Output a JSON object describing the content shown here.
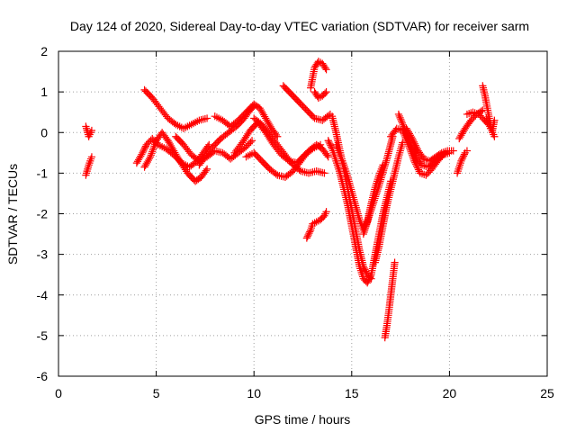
{
  "chart_data": {
    "type": "scatter",
    "title": "Day 124 of 2020, Sidereal Day-to-day VTEC variation (SDTVAR) for receiver sarm",
    "xlabel": "GPS time / hours",
    "ylabel": "SDTVAR / TECUs",
    "xlim": [
      0,
      25
    ],
    "ylim": [
      -6,
      2
    ],
    "xticks": [
      "0",
      "5",
      "10",
      "15",
      "20",
      "25"
    ],
    "yticks": [
      "-6",
      "-5",
      "-4",
      "-3",
      "-2",
      "-1",
      "0",
      "1",
      "2"
    ],
    "grid": true,
    "marker": "plus",
    "color": "#ff0000",
    "series": [
      {
        "x": [
          1.4,
          1.55,
          1.7
        ],
        "y": [
          0.15,
          -0.1,
          0.05
        ]
      },
      {
        "x": [
          1.4,
          1.55,
          1.7
        ],
        "y": [
          -1.05,
          -0.8,
          -0.6
        ]
      },
      {
        "x": [
          4.0,
          4.3,
          4.5,
          4.8,
          5.1,
          5.5,
          5.9,
          6.3,
          6.7,
          7.1,
          7.4,
          7.7
        ],
        "y": [
          -0.75,
          -0.5,
          -0.3,
          -0.15,
          -0.3,
          -0.4,
          -0.55,
          -0.75,
          -0.85,
          -0.7,
          -0.5,
          -0.3
        ]
      },
      {
        "x": [
          4.4,
          4.7,
          5.0,
          5.3,
          5.6,
          5.9,
          6.2,
          6.6,
          7.0,
          7.3,
          7.6
        ],
        "y": [
          -0.85,
          -0.6,
          -0.2,
          0.0,
          -0.2,
          -0.45,
          -0.7,
          -1.0,
          -1.2,
          -1.1,
          -0.9
        ]
      },
      {
        "x": [
          4.4,
          4.8,
          5.2,
          5.6,
          6.0,
          6.4,
          6.8,
          7.2,
          7.6
        ],
        "y": [
          1.05,
          0.85,
          0.6,
          0.35,
          0.2,
          0.1,
          0.2,
          0.3,
          0.35
        ]
      },
      {
        "x": [
          6.0,
          6.4,
          6.8,
          7.2,
          7.6,
          8.0,
          8.4,
          8.8,
          9.2,
          9.6,
          9.9
        ],
        "y": [
          -0.1,
          -0.3,
          -0.55,
          -0.7,
          -0.6,
          -0.45,
          -0.5,
          -0.65,
          -0.5,
          -0.35,
          -0.2
        ]
      },
      {
        "x": [
          7.2,
          7.5,
          7.9,
          8.3,
          8.7,
          9.1,
          9.5,
          9.8,
          10.0
        ],
        "y": [
          -0.8,
          -0.6,
          -0.35,
          -0.15,
          0.0,
          0.15,
          0.35,
          0.55,
          0.65
        ]
      },
      {
        "x": [
          8.0,
          8.4,
          8.8,
          9.2,
          9.6,
          10.0,
          10.3,
          10.6,
          10.9,
          11.2
        ],
        "y": [
          0.4,
          0.3,
          0.15,
          0.3,
          0.5,
          0.7,
          0.6,
          0.35,
          0.1,
          -0.1
        ]
      },
      {
        "x": [
          9.0,
          9.4,
          9.8,
          10.2,
          10.6,
          11.0,
          11.4,
          11.8,
          12.2,
          12.6,
          13.0,
          13.4
        ],
        "y": [
          -0.5,
          -0.25,
          0.05,
          0.25,
          0.0,
          -0.3,
          -0.55,
          -0.7,
          -0.75,
          -0.55,
          -0.4,
          -0.3
        ]
      },
      {
        "x": [
          9.6,
          10.0,
          10.4,
          10.8,
          11.2,
          11.6,
          12.0,
          12.4,
          12.8,
          13.2,
          13.5,
          13.8
        ],
        "y": [
          -0.6,
          -0.5,
          -0.7,
          -0.9,
          -1.05,
          -1.1,
          -0.95,
          -0.7,
          -0.45,
          -0.3,
          -0.4,
          -0.6
        ]
      },
      {
        "x": [
          10.0,
          10.4,
          10.8,
          11.2,
          11.6,
          12.0,
          12.4,
          12.8,
          13.2,
          13.6
        ],
        "y": [
          0.35,
          0.2,
          -0.05,
          -0.3,
          -0.55,
          -0.8,
          -0.95,
          -1.0,
          -0.95,
          -1.0
        ]
      },
      {
        "x": [
          11.5,
          11.9,
          12.3,
          12.7,
          13.1,
          13.5,
          13.9
        ],
        "y": [
          1.15,
          0.95,
          0.75,
          0.55,
          0.35,
          0.3,
          0.45
        ]
      },
      {
        "x": [
          12.7,
          12.9,
          13.0,
          13.2,
          13.4,
          13.6,
          13.7
        ],
        "y": [
          -2.6,
          -2.4,
          -2.25,
          -2.2,
          -2.15,
          -2.05,
          -1.95
        ]
      },
      {
        "x": [
          12.9,
          13.0,
          13.1,
          13.3,
          13.5,
          13.7
        ],
        "y": [
          1.1,
          1.35,
          1.6,
          1.75,
          1.7,
          1.55
        ]
      },
      {
        "x": [
          13.1,
          13.3,
          13.5,
          13.7
        ],
        "y": [
          1.0,
          0.85,
          0.9,
          1.0
        ]
      },
      {
        "x": [
          13.8,
          14.0,
          14.2,
          14.4,
          14.6,
          14.8,
          15.0,
          15.2,
          15.4,
          15.6,
          15.8,
          16.0,
          16.2,
          16.4,
          16.6,
          16.8,
          17.0
        ],
        "y": [
          -0.2,
          -0.4,
          -0.7,
          -1.0,
          -1.4,
          -1.8,
          -2.3,
          -2.8,
          -3.3,
          -3.6,
          -3.7,
          -3.5,
          -3.0,
          -2.5,
          -2.0,
          -1.6,
          -1.2
        ]
      },
      {
        "x": [
          14.0,
          14.2,
          14.4,
          14.6,
          14.8,
          15.0,
          15.2,
          15.4,
          15.6,
          15.8,
          16.0
        ],
        "y": [
          0.4,
          0.0,
          -0.45,
          -0.9,
          -1.4,
          -1.9,
          -2.4,
          -2.9,
          -3.3,
          -3.5,
          -3.6
        ]
      },
      {
        "x": [
          14.2,
          14.4,
          14.6,
          14.8,
          15.0,
          15.2,
          15.4,
          15.6,
          15.8,
          16.0,
          16.2,
          16.4,
          16.6
        ],
        "y": [
          -0.3,
          -0.55,
          -0.8,
          -1.1,
          -1.45,
          -1.8,
          -2.15,
          -2.4,
          -2.2,
          -1.75,
          -1.35,
          -1.05,
          -0.8
        ]
      },
      {
        "x": [
          15.6,
          16.0,
          16.4,
          16.8,
          17.1
        ],
        "y": [
          -2.5,
          -1.9,
          -1.3,
          -0.65,
          -0.1
        ]
      },
      {
        "x": [
          16.2,
          16.4,
          16.6,
          16.8,
          17.0,
          17.2,
          17.4,
          17.6
        ],
        "y": [
          -3.2,
          -2.8,
          -2.3,
          -1.8,
          -1.4,
          -1.0,
          -0.6,
          -0.25
        ]
      },
      {
        "x": [
          16.7,
          16.8,
          16.9,
          17.0,
          17.1,
          17.2
        ],
        "y": [
          -5.05,
          -4.75,
          -4.4,
          -4.0,
          -3.6,
          -3.2
        ]
      },
      {
        "x": [
          17.0,
          17.3,
          17.6,
          17.9,
          18.2,
          18.5,
          18.8,
          19.1,
          19.4,
          19.7,
          20.0
        ],
        "y": [
          -0.1,
          0.1,
          0.05,
          -0.3,
          -0.7,
          -1.0,
          -1.05,
          -0.9,
          -0.7,
          -0.55,
          -0.5
        ]
      },
      {
        "x": [
          17.4,
          17.7,
          18.0,
          18.3,
          18.6,
          18.9,
          19.2,
          19.5,
          19.8
        ],
        "y": [
          0.45,
          0.1,
          -0.3,
          -0.6,
          -0.8,
          -0.85,
          -0.75,
          -0.6,
          -0.5
        ]
      },
      {
        "x": [
          17.8,
          18.1,
          18.4,
          18.7,
          19.0,
          19.3,
          19.6,
          19.9,
          20.2
        ],
        "y": [
          0.1,
          -0.15,
          -0.45,
          -0.65,
          -0.7,
          -0.6,
          -0.5,
          -0.45,
          -0.45
        ]
      },
      {
        "x": [
          20.4,
          20.6,
          20.8,
          20.9
        ],
        "y": [
          -1.0,
          -0.7,
          -0.5,
          -0.45
        ]
      },
      {
        "x": [
          20.5,
          20.8,
          21.1,
          21.4,
          21.7
        ],
        "y": [
          -0.15,
          0.1,
          0.3,
          0.45,
          0.55
        ]
      },
      {
        "x": [
          20.9,
          21.2,
          21.5,
          21.8,
          22.0
        ],
        "y": [
          0.45,
          0.5,
          0.45,
          0.3,
          0.2
        ]
      },
      {
        "x": [
          21.7,
          21.8,
          21.9,
          22.0,
          22.1,
          22.2,
          22.3
        ],
        "y": [
          1.15,
          0.95,
          0.7,
          0.45,
          0.2,
          0.0,
          -0.1
        ]
      },
      {
        "x": [
          21.9,
          22.0,
          22.1,
          22.2,
          22.3
        ],
        "y": [
          0.35,
          0.25,
          0.1,
          0.05,
          0.3
        ]
      }
    ]
  }
}
